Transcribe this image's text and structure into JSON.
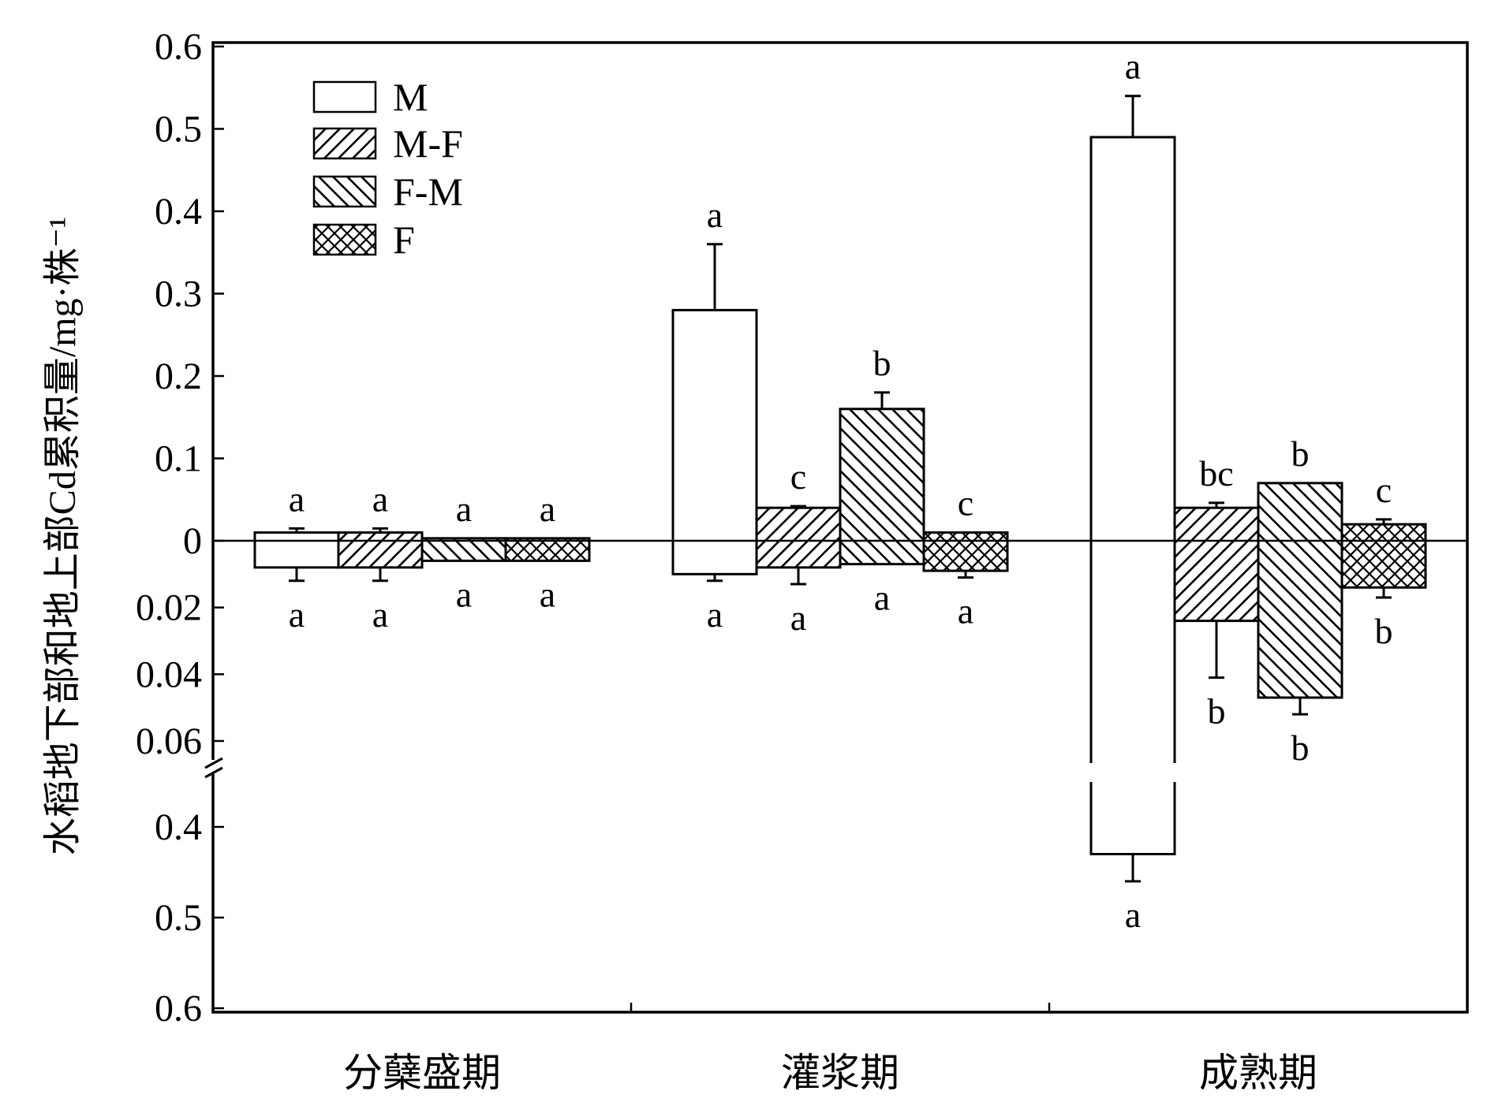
{
  "chart_data": {
    "type": "bar",
    "ylabel": "水稻地下部和地上部Cd累积量/mg·株⁻¹",
    "categories": [
      "分蘖盛期",
      "灌浆期",
      "成熟期"
    ],
    "legend": {
      "position": "top-left",
      "entries": [
        "M",
        "M-F",
        "F-M",
        "F"
      ]
    },
    "y_axis": {
      "positive_range": [
        0,
        0.6
      ],
      "positive_ticks": [
        "0.6",
        "0.5",
        "0.4",
        "0.3",
        "0.2",
        "0.1",
        "0"
      ],
      "negative_upper_range": [
        0,
        0.06
      ],
      "negative_upper_ticks": [
        "0.02",
        "0.04",
        "0.06"
      ],
      "negative_lower_range": [
        0.4,
        0.6
      ],
      "negative_lower_ticks": [
        "0.4",
        "0.5",
        "0.6"
      ],
      "axis_break": true
    },
    "series": [
      {
        "name": "M",
        "pattern": "none",
        "above": {
          "values": [
            0.01,
            0.28,
            0.49
          ],
          "err": [
            0.005,
            0.08,
            0.05
          ],
          "labels": [
            "a",
            "a",
            "a"
          ]
        },
        "below": {
          "values": [
            0.008,
            0.01,
            0.43
          ],
          "err": [
            0.004,
            0.002,
            0.03
          ],
          "labels": [
            "a",
            "a",
            "a"
          ]
        }
      },
      {
        "name": "M-F",
        "pattern": "hatch-forward",
        "above": {
          "values": [
            0.01,
            0.04,
            0.04
          ],
          "err": [
            0.005,
            0.002,
            0.006
          ],
          "labels": [
            "a",
            "c",
            "bc"
          ]
        },
        "below": {
          "values": [
            0.008,
            0.008,
            0.024
          ],
          "err": [
            0.004,
            0.005,
            0.017
          ],
          "labels": [
            "a",
            "a",
            "b"
          ]
        }
      },
      {
        "name": "F-M",
        "pattern": "hatch-back",
        "above": {
          "values": [
            0.003,
            0.16,
            0.07
          ],
          "err": [
            0,
            0.02,
            0
          ],
          "labels": [
            "a",
            "b",
            "b"
          ]
        },
        "below": {
          "values": [
            0.006,
            0.007,
            0.047
          ],
          "err": [
            0,
            0,
            0.005
          ],
          "labels": [
            "a",
            "a",
            "b"
          ]
        }
      },
      {
        "name": "F",
        "pattern": "crosshatch",
        "above": {
          "values": [
            0.003,
            0.01,
            0.02
          ],
          "err": [
            0,
            0,
            0.006
          ],
          "labels": [
            "a",
            "c",
            "c"
          ]
        },
        "below": {
          "values": [
            0.006,
            0.009,
            0.014
          ],
          "err": [
            0,
            0.002,
            0.003
          ],
          "labels": [
            "a",
            "a",
            "b"
          ]
        }
      }
    ]
  }
}
